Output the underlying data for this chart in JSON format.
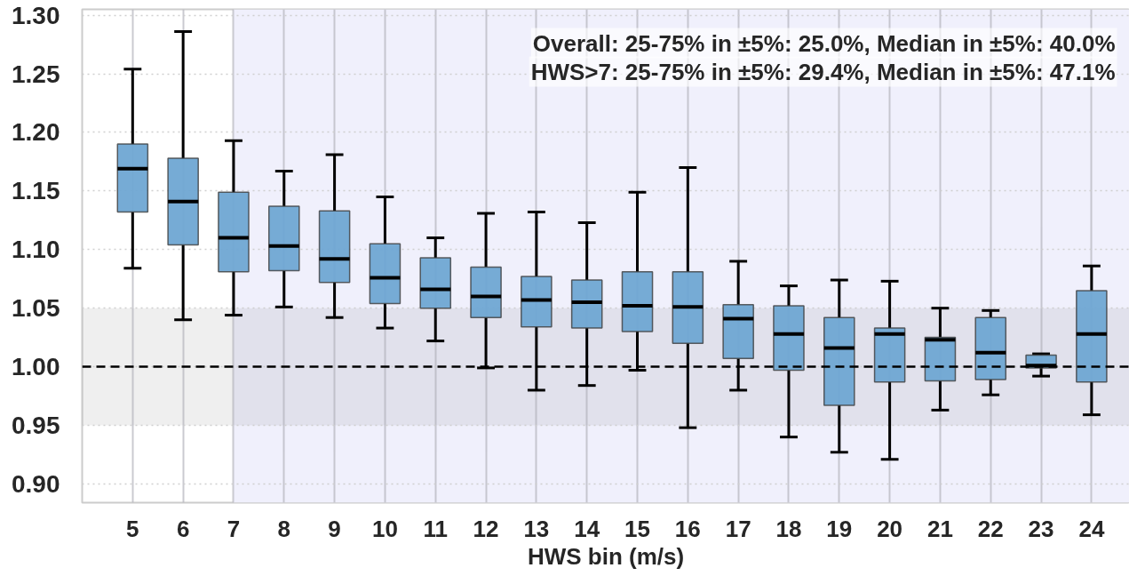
{
  "chart_data": {
    "type": "box",
    "x": [
      5,
      6,
      7,
      8,
      9,
      10,
      11,
      12,
      13,
      14,
      15,
      16,
      17,
      18,
      19,
      20,
      21,
      22,
      23,
      24
    ],
    "xlim": [
      4,
      24.75
    ],
    "xticks": [
      5,
      6,
      7,
      8,
      9,
      10,
      11,
      12,
      13,
      14,
      15,
      16,
      17,
      18,
      19,
      20,
      21,
      22,
      23,
      24
    ],
    "ylim": [
      0.884,
      1.305
    ],
    "yticks": [
      {
        "value": 0.9,
        "label": "0.90"
      },
      0.95,
      {
        "value": 1.0,
        "label": "1.00"
      },
      1.05,
      {
        "value": 1.1,
        "label": "1.10"
      },
      1.15,
      {
        "value": 1.2,
        "label": "1.20"
      },
      1.25,
      {
        "value": 1.3,
        "label": "1.30"
      }
    ],
    "xlabel": "HWS bin (m/s)",
    "grid": true,
    "series": [
      {
        "color": "#6fa6d3",
        "boxes": [
          {
            "low": 1.084,
            "q1": 1.132,
            "median": 1.169,
            "q3": 1.19,
            "high": 1.254
          },
          {
            "low": 1.04,
            "q1": 1.104,
            "median": 1.141,
            "q3": 1.178,
            "high": 1.286
          },
          {
            "low": 1.044,
            "q1": 1.081,
            "median": 1.11,
            "q3": 1.149,
            "high": 1.193
          },
          {
            "low": 1.051,
            "q1": 1.082,
            "median": 1.103,
            "q3": 1.137,
            "high": 1.167
          },
          {
            "low": 1.042,
            "q1": 1.072,
            "median": 1.092,
            "q3": 1.133,
            "high": 1.181
          },
          {
            "low": 1.033,
            "q1": 1.054,
            "median": 1.076,
            "q3": 1.105,
            "high": 1.145
          },
          {
            "low": 1.022,
            "q1": 1.05,
            "median": 1.066,
            "q3": 1.093,
            "high": 1.11
          },
          {
            "low": 0.999,
            "q1": 1.042,
            "median": 1.06,
            "q3": 1.085,
            "high": 1.131
          },
          {
            "low": 0.98,
            "q1": 1.034,
            "median": 1.057,
            "q3": 1.077,
            "high": 1.132
          },
          {
            "low": 0.984,
            "q1": 1.033,
            "median": 1.055,
            "q3": 1.074,
            "high": 1.123
          },
          {
            "low": 0.997,
            "q1": 1.03,
            "median": 1.052,
            "q3": 1.081,
            "high": 1.149
          },
          {
            "low": 0.948,
            "q1": 1.02,
            "median": 1.051,
            "q3": 1.081,
            "high": 1.17
          },
          {
            "low": 0.98,
            "q1": 1.007,
            "median": 1.041,
            "q3": 1.053,
            "high": 1.09
          },
          {
            "low": 0.94,
            "q1": 0.997,
            "median": 1.028,
            "q3": 1.052,
            "high": 1.069
          },
          {
            "low": 0.927,
            "q1": 0.967,
            "median": 1.016,
            "q3": 1.042,
            "high": 1.074
          },
          {
            "low": 0.921,
            "q1": 0.987,
            "median": 1.028,
            "q3": 1.033,
            "high": 1.073
          },
          {
            "low": 0.963,
            "q1": 0.988,
            "median": 1.023,
            "q3": 1.025,
            "high": 1.05
          },
          {
            "low": 0.976,
            "q1": 0.989,
            "median": 1.012,
            "q3": 1.042,
            "high": 1.048
          },
          {
            "low": 0.992,
            "q1": 0.999,
            "median": 1.001,
            "q3": 1.01,
            "high": 1.011
          },
          {
            "low": 0.959,
            "q1": 0.987,
            "median": 1.028,
            "q3": 1.065,
            "high": 1.086
          }
        ]
      }
    ],
    "ref_lines": [
      {
        "axis": "y",
        "value": 1.0,
        "color": "#000000",
        "line_style": "dashed"
      }
    ],
    "bands": [
      {
        "axis": "x",
        "from": 7,
        "to": 24.75,
        "color": "#f0f0fc"
      },
      {
        "axis": "y",
        "from": 0.95,
        "to": 1.05,
        "color": "#efefef"
      }
    ],
    "annotations": [
      "Overall: 25-75% in ±5%: 25.0%, Median in ±5%: 40.0%",
      "HWS>7: 25-75% in ±5%: 29.4%, Median in ±5%: 47.1%"
    ]
  }
}
